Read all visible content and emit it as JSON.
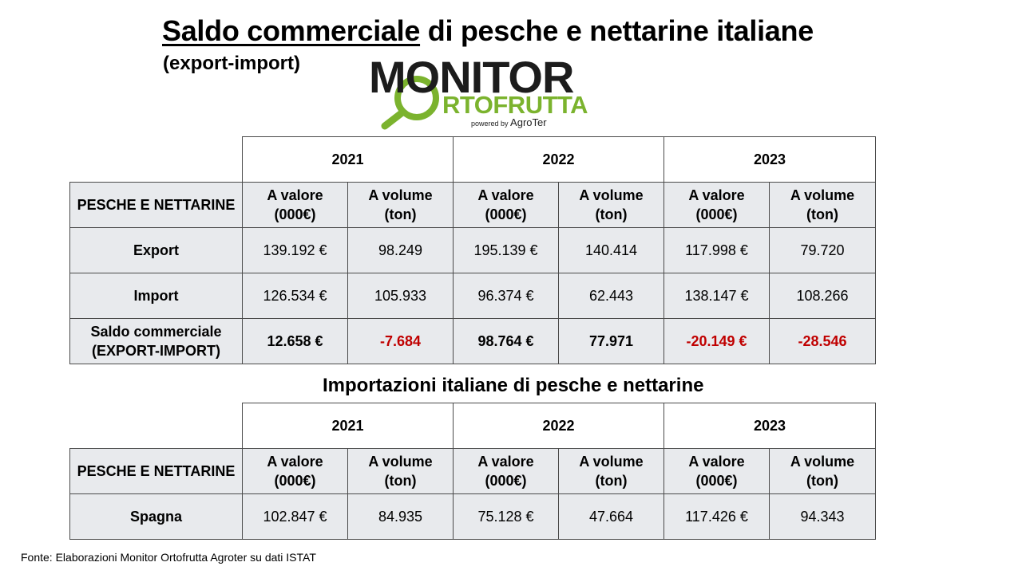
{
  "title": {
    "underlined": "Saldo commerciale",
    "rest": " di pesche e nettarine italiane"
  },
  "subtitle": "(export-import)",
  "logo": {
    "line1": "MONITOR",
    "line2": "RTOFRUTTA",
    "powered": "powered by",
    "brand": "AgroTer"
  },
  "table1": {
    "years": [
      "2021",
      "2022",
      "2023"
    ],
    "row_header": "PESCHE E NETTARINE",
    "col_value": [
      "A valore",
      "(000€)"
    ],
    "col_volume": [
      "A volume",
      "(ton)"
    ],
    "rows": [
      {
        "label": "Export",
        "cells": [
          "139.192 €",
          "98.249",
          "195.139 €",
          "140.414",
          "117.998 €",
          "79.720"
        ]
      },
      {
        "label": "Import",
        "cells": [
          "126.534 €",
          "105.933",
          "96.374 €",
          "62.443",
          "138.147 €",
          "108.266"
        ]
      },
      {
        "label": [
          "Saldo commerciale",
          "(EXPORT-IMPORT)"
        ],
        "cells": [
          "12.658 €",
          "-7.684",
          "98.764 €",
          "77.971",
          "-20.149 €",
          "-28.546"
        ]
      }
    ],
    "negative_color": "#c00000"
  },
  "heading2": "Importazioni italiane di pesche e nettarine",
  "table2": {
    "years": [
      "2021",
      "2022",
      "2023"
    ],
    "row_header": "PESCHE E NETTARINE",
    "col_value": [
      "A valore",
      "(000€)"
    ],
    "col_volume": [
      "A volume",
      "(ton)"
    ],
    "rows": [
      {
        "label": "Spagna",
        "cells": [
          "102.847 €",
          "84.935",
          "75.128 €",
          "47.664",
          "117.426 €",
          "94.343"
        ]
      }
    ]
  },
  "source": "Fonte: Elaborazioni Monitor Ortofrutta Agroter su dati ISTAT",
  "colors": {
    "header_gray": "#e8eaed",
    "logo_green": "#7bb32e",
    "border": "#4a4a4a"
  }
}
